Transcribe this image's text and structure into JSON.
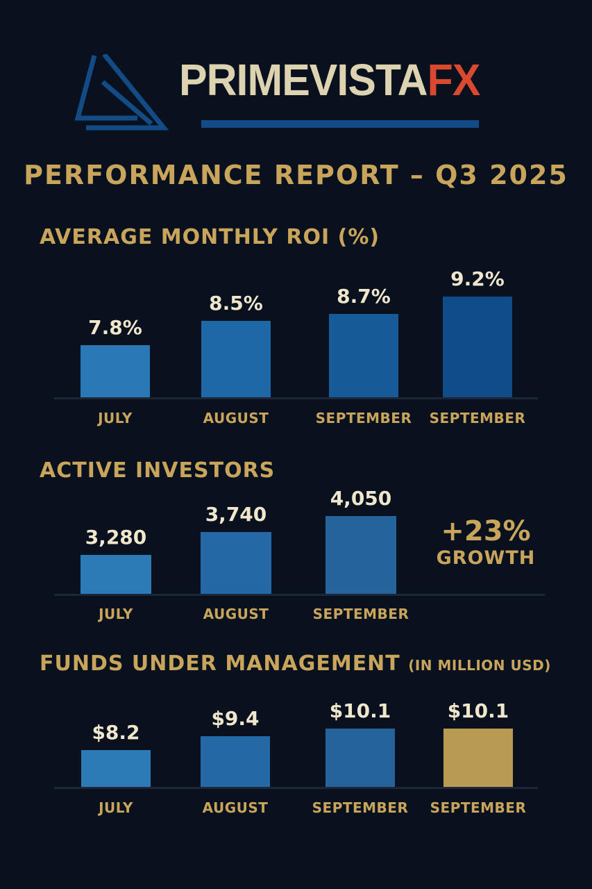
{
  "brand": {
    "name_main": "PRIMEVISTA",
    "name_accent": "FX",
    "colors": {
      "main": "#ddd3b0",
      "accent": "#d9482f",
      "logo": "#124b86"
    }
  },
  "title": "PERFORMANCE REPORT – Q3 2025",
  "growth": {
    "value": "+23%",
    "label": "GROWTH"
  },
  "chart_data": [
    {
      "type": "bar",
      "title": "AVERAGE MONTHLY ROI (%)",
      "title_note": "",
      "categories": [
        "JULY",
        "AUGUST",
        "SEPTEMBER",
        "SEPTEMBER"
      ],
      "values": [
        7.8,
        8.5,
        8.7,
        9.2
      ],
      "labels": [
        "7.8%",
        "8.5%",
        "8.7%",
        "9.2%"
      ],
      "colors": [
        "#2a78b6",
        "#1f68a8",
        "#175a98",
        "#0f4c88"
      ]
    },
    {
      "type": "bar",
      "title": "ACTIVE INVESTORS",
      "title_note": "",
      "categories": [
        "JULY",
        "AUGUST",
        "SEPTEMBER"
      ],
      "values": [
        3280,
        3740,
        4050
      ],
      "labels": [
        "3,280",
        "3,740",
        "4,050"
      ],
      "colors": [
        "#2c7ab6",
        "#2468a6",
        "#24639c"
      ]
    },
    {
      "type": "bar",
      "title": "FUNDS UNDER MANAGEMENT",
      "title_note": "(IN MILLION USD)",
      "categories": [
        "JULY",
        "AUGUST",
        "SEPTEMBER",
        "SEPTEMBER"
      ],
      "values": [
        8.2,
        9.4,
        10.1,
        10.1
      ],
      "labels": [
        "$8.2",
        "$9.4",
        "$10.1",
        "$10.1"
      ],
      "colors": [
        "#2c7ab6",
        "#2468a6",
        "#24639c",
        "#b89a52"
      ]
    }
  ]
}
